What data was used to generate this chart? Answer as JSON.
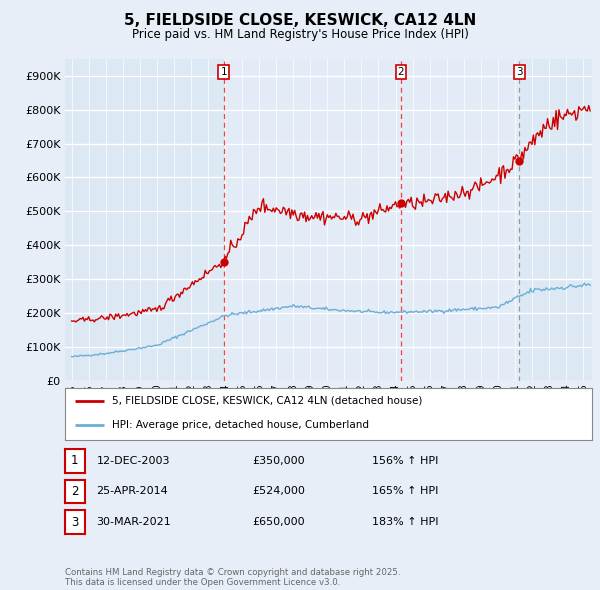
{
  "title": "5, FIELDSIDE CLOSE, KESWICK, CA12 4LN",
  "subtitle": "Price paid vs. HM Land Registry's House Price Index (HPI)",
  "legend_entry1": "5, FIELDSIDE CLOSE, KESWICK, CA12 4LN (detached house)",
  "legend_entry2": "HPI: Average price, detached house, Cumberland",
  "footer": "Contains HM Land Registry data © Crown copyright and database right 2025.\nThis data is licensed under the Open Government Licence v3.0.",
  "sales": [
    {
      "label": "1",
      "date": "12-DEC-2003",
      "price": 350000,
      "hpi_pct": "156% ↑ HPI",
      "x_year": 2003.92
    },
    {
      "label": "2",
      "date": "25-APR-2014",
      "price": 524000,
      "hpi_pct": "165% ↑ HPI",
      "x_year": 2014.32
    },
    {
      "label": "3",
      "date": "30-MAR-2021",
      "price": 650000,
      "hpi_pct": "183% ↑ HPI",
      "x_year": 2021.25
    }
  ],
  "vline_styles": [
    "red_dashed",
    "red_dashed",
    "grey_dashed"
  ],
  "bg_color": "#e8eef8",
  "plot_bg_color": "#dde8f5",
  "grid_color": "#ffffff",
  "red_line_color": "#cc0000",
  "blue_line_color": "#6baed6",
  "vline_red_color": "#ee4444",
  "vline_grey_color": "#999999",
  "ylim": [
    0,
    950000
  ],
  "yticks": [
    0,
    100000,
    200000,
    300000,
    400000,
    500000,
    600000,
    700000,
    800000,
    900000
  ],
  "xlim_start": 1994.6,
  "xlim_end": 2025.5
}
